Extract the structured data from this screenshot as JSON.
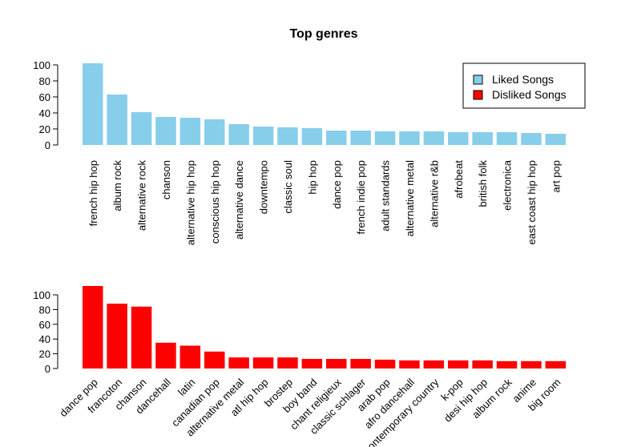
{
  "title": "Top genres",
  "colors": {
    "liked": "#87CEEB",
    "disliked": "#FF0000"
  },
  "legend": {
    "placement": "top-right",
    "entries": [
      {
        "label": "Liked Songs",
        "color": "#87CEEB"
      },
      {
        "label": "Disliked Songs",
        "color": "#FF0000"
      }
    ]
  },
  "chart_data": [
    {
      "type": "bar",
      "series": [
        {
          "name": "Liked Songs",
          "color": "#87CEEB"
        }
      ],
      "categories": [
        "french hip hop",
        "album rock",
        "alternative rock",
        "chanson",
        "alternative hip hop",
        "conscious hip hop",
        "alternative dance",
        "downtempo",
        "classic soul",
        "hip hop",
        "dance pop",
        "french indie pop",
        "adult standards",
        "alternative metal",
        "alternative r&b",
        "afrobeat",
        "british folk",
        "electronica",
        "east coast hip hop",
        "art pop"
      ],
      "values": [
        102,
        63,
        41,
        35,
        34,
        32,
        26,
        23,
        22,
        21,
        18,
        18,
        17,
        17,
        17,
        16,
        16,
        16,
        15,
        14
      ],
      "yticks": [
        0,
        20,
        40,
        60,
        80,
        100
      ],
      "ylim": [
        0,
        102
      ],
      "label_orientation": "vertical"
    },
    {
      "type": "bar",
      "series": [
        {
          "name": "Disliked Songs",
          "color": "#FF0000"
        }
      ],
      "categories": [
        "dance pop",
        "francoton",
        "chanson",
        "dancehall",
        "latin",
        "canadian pop",
        "alternative metal",
        "atl hip hop",
        "brostep",
        "boy band",
        "chant religieux",
        "classic schlager",
        "arab pop",
        "afro dancehall",
        "contemporary country",
        "k-pop",
        "desi hip hop",
        "album rock",
        "anime",
        "big room"
      ],
      "values": [
        112,
        88,
        84,
        35,
        31,
        23,
        15,
        15,
        15,
        13,
        13,
        13,
        12,
        11,
        11,
        11,
        11,
        10,
        10,
        10
      ],
      "yticks": [
        0,
        20,
        40,
        60,
        80,
        100
      ],
      "ylim": [
        0,
        112
      ],
      "label_orientation": "rotated-45"
    }
  ]
}
